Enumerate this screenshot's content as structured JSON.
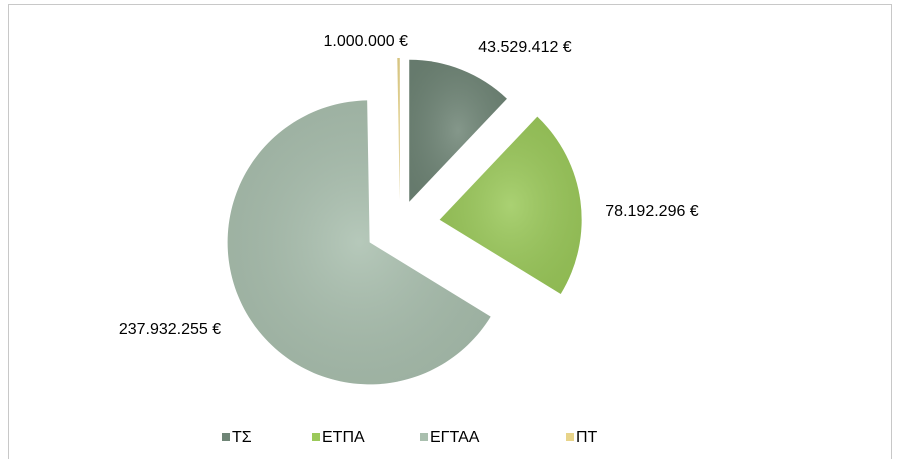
{
  "chart_data": {
    "type": "pie",
    "categories": [
      "ΤΣ",
      "ΕΤΠΑ",
      "ΕΓΤΑΑ",
      "ΠΤ"
    ],
    "values": [
      43529412,
      78192296,
      237932255,
      1000000
    ],
    "value_labels": [
      "43.529.412 €",
      "78.192.296 €",
      "237.932.255 €",
      "1.000.000 €"
    ],
    "colors": [
      "#6f8576",
      "#9bc95a",
      "#a9bfae",
      "#e8d48a"
    ],
    "legend": "bottom"
  }
}
